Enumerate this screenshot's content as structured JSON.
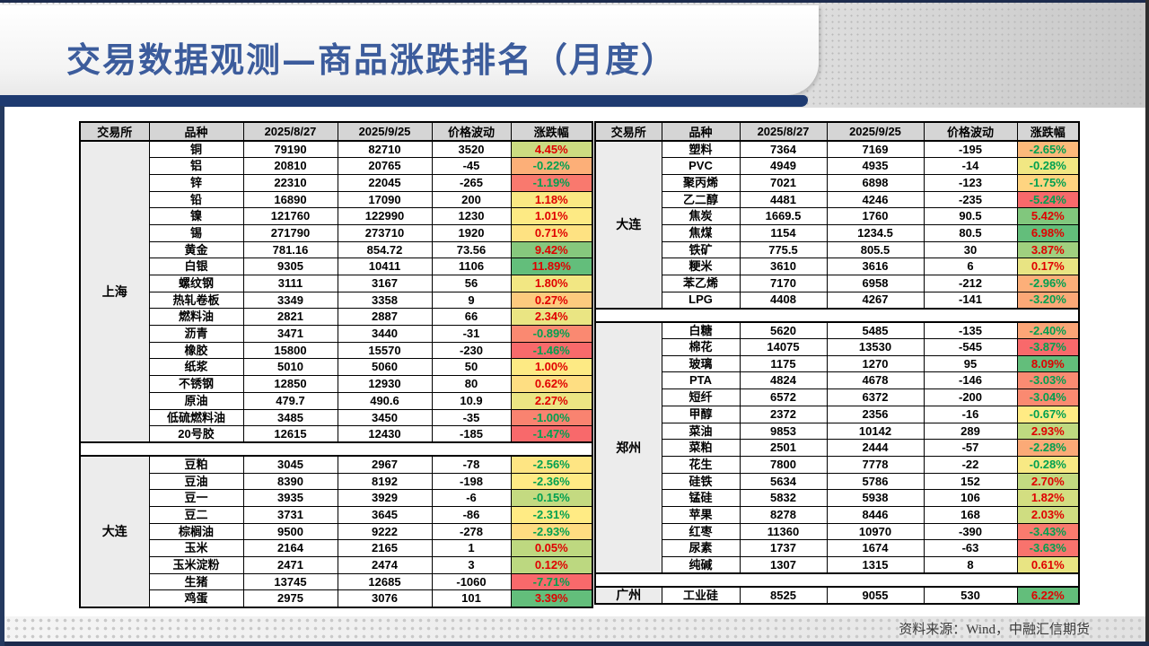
{
  "title": "交易数据观测—商品涨跌排名（月度）",
  "source_note": "资料来源：Wind，中融汇信期货",
  "colors": {
    "title_text": "#3c5c9c",
    "accent_bar": "#1e3a70",
    "up_text": "#e00000",
    "down_text": "#00a050",
    "scale_min": "#F8696B",
    "scale_mid": "#FFEB84",
    "scale_max": "#63BE7B",
    "header_fill": "#d5d5d5",
    "exchange_fill": "#ececec"
  },
  "tables": [
    {
      "id": "left",
      "headers": [
        "交易所",
        "品种",
        "2025/8/27",
        "2025/9/25",
        "价格波动",
        "涨跌幅"
      ],
      "sections": [
        {
          "exchange": "上海",
          "rows": [
            {
              "variety": "铜",
              "d1": "79190",
              "d2": "82710",
              "change": "3520",
              "pct": "4.45%",
              "dir": "up",
              "fill": "#CCDC81"
            },
            {
              "variety": "铝",
              "d1": "20810",
              "d2": "20765",
              "change": "-45",
              "pct": "-0.22%",
              "dir": "down",
              "fill": "#FCAF78"
            },
            {
              "variety": "锌",
              "d1": "22310",
              "d2": "22045",
              "change": "-265",
              "pct": "-1.19%",
              "dir": "down",
              "fill": "#F9796E"
            },
            {
              "variety": "铅",
              "d1": "16890",
              "d2": "17090",
              "change": "200",
              "pct": "1.18%",
              "dir": "up",
              "fill": "#FAE983"
            },
            {
              "variety": "镍",
              "d1": "121760",
              "d2": "122990",
              "change": "1230",
              "pct": "1.01%",
              "dir": "up",
              "fill": "#FDEA84"
            },
            {
              "variety": "锡",
              "d1": "271790",
              "d2": "273710",
              "change": "1920",
              "pct": "0.71%",
              "dir": "up",
              "fill": "#FEE282"
            },
            {
              "variety": "黄金",
              "d1": "781.16",
              "d2": "854.72",
              "change": "73.56",
              "pct": "9.42%",
              "dir": "up",
              "fill": "#86C87D"
            },
            {
              "variety": "白银",
              "d1": "9305",
              "d2": "10411",
              "change": "1106",
              "pct": "11.89%",
              "dir": "up",
              "fill": "#63BE7B"
            },
            {
              "variety": "螺纹钢",
              "d1": "3111",
              "d2": "3167",
              "change": "56",
              "pct": "1.80%",
              "dir": "up",
              "fill": "#F2E783"
            },
            {
              "variety": "热轧卷板",
              "d1": "3349",
              "d2": "3358",
              "change": "9",
              "pct": "0.27%",
              "dir": "up",
              "fill": "#FDCA7E"
            },
            {
              "variety": "燃料油",
              "d1": "2821",
              "d2": "2887",
              "change": "66",
              "pct": "2.34%",
              "dir": "up",
              "fill": "#EAE583"
            },
            {
              "variety": "沥青",
              "d1": "3471",
              "d2": "3440",
              "change": "-31",
              "pct": "-0.89%",
              "dir": "down",
              "fill": "#FA8971"
            },
            {
              "variety": "橡胶",
              "d1": "15800",
              "d2": "15570",
              "change": "-230",
              "pct": "-1.46%",
              "dir": "down",
              "fill": "#F86A6B"
            },
            {
              "variety": "纸浆",
              "d1": "5010",
              "d2": "5060",
              "change": "50",
              "pct": "1.00%",
              "dir": "up",
              "fill": "#FDEA84"
            },
            {
              "variety": "不锈钢",
              "d1": "12850",
              "d2": "12930",
              "change": "80",
              "pct": "0.62%",
              "dir": "up",
              "fill": "#FEDE82"
            },
            {
              "variety": "原油",
              "d1": "479.7",
              "d2": "490.6",
              "change": "10.9",
              "pct": "2.27%",
              "dir": "up",
              "fill": "#EBE583"
            },
            {
              "variety": "低硫燃料油",
              "d1": "3485",
              "d2": "3450",
              "change": "-35",
              "pct": "-1.00%",
              "dir": "down",
              "fill": "#F98370"
            },
            {
              "variety": "20号胶",
              "d1": "12615",
              "d2": "12430",
              "change": "-185",
              "pct": "-1.47%",
              "dir": "down",
              "fill": "#F8696B"
            }
          ]
        },
        {
          "exchange": "大连",
          "rows": [
            {
              "variety": "豆粕",
              "d1": "3045",
              "d2": "2967",
              "change": "-78",
              "pct": "-2.56%",
              "dir": "down",
              "fill": "#FEE583"
            },
            {
              "variety": "豆油",
              "d1": "8390",
              "d2": "8192",
              "change": "-198",
              "pct": "-2.36%",
              "dir": "down",
              "fill": "#FFEA84"
            },
            {
              "variety": "豆一",
              "d1": "3935",
              "d2": "3929",
              "change": "-6",
              "pct": "-0.15%",
              "dir": "down",
              "fill": "#C4DA81"
            },
            {
              "variety": "豆二",
              "d1": "3731",
              "d2": "3645",
              "change": "-86",
              "pct": "-2.31%",
              "dir": "down",
              "fill": "#FFEB84"
            },
            {
              "variety": "棕榈油",
              "d1": "9500",
              "d2": "9222",
              "change": "-278",
              "pct": "-2.93%",
              "dir": "down",
              "fill": "#FEDC81"
            },
            {
              "variety": "玉米",
              "d1": "2164",
              "d2": "2165",
              "change": "1",
              "pct": "0.05%",
              "dir": "up",
              "fill": "#BED880"
            },
            {
              "variety": "玉米淀粉",
              "d1": "2471",
              "d2": "2474",
              "change": "3",
              "pct": "0.12%",
              "dir": "up",
              "fill": "#BCD880"
            },
            {
              "variety": "生猪",
              "d1": "13745",
              "d2": "12685",
              "change": "-1060",
              "pct": "-7.71%",
              "dir": "down",
              "fill": "#F8696B"
            },
            {
              "variety": "鸡蛋",
              "d1": "2975",
              "d2": "3076",
              "change": "101",
              "pct": "3.39%",
              "dir": "up",
              "fill": "#63BE7B"
            }
          ]
        }
      ]
    },
    {
      "id": "right",
      "headers": [
        "交易所",
        "品种",
        "2025/8/27",
        "2025/9/25",
        "价格波动",
        "涨跌幅"
      ],
      "sections": [
        {
          "exchange": "大连",
          "rows": [
            {
              "variety": "塑料",
              "d1": "7364",
              "d2": "7169",
              "change": "-195",
              "pct": "-2.65%",
              "dir": "down",
              "fill": "#FCB97A"
            },
            {
              "variety": "PVC",
              "d1": "4949",
              "d2": "4935",
              "change": "-14",
              "pct": "-0.28%",
              "dir": "down",
              "fill": "#F1E783"
            },
            {
              "variety": "聚丙烯",
              "d1": "7021",
              "d2": "6898",
              "change": "-123",
              "pct": "-1.75%",
              "dir": "down",
              "fill": "#FED480"
            },
            {
              "variety": "乙二醇",
              "d1": "4481",
              "d2": "4246",
              "change": "-235",
              "pct": "-5.24%",
              "dir": "down",
              "fill": "#F8696B"
            },
            {
              "variety": "焦炭",
              "d1": "1669.5",
              "d2": "1760",
              "change": "90.5",
              "pct": "5.42%",
              "dir": "up",
              "fill": "#81C77D"
            },
            {
              "variety": "焦煤",
              "d1": "1154",
              "d2": "1234.5",
              "change": "80.5",
              "pct": "6.98%",
              "dir": "up",
              "fill": "#63BE7B"
            },
            {
              "variety": "铁矿",
              "d1": "775.5",
              "d2": "805.5",
              "change": "30",
              "pct": "3.87%",
              "dir": "up",
              "fill": "#A0D07F"
            },
            {
              "variety": "粳米",
              "d1": "3610",
              "d2": "3616",
              "change": "6",
              "pct": "0.17%",
              "dir": "up",
              "fill": "#E8E483"
            },
            {
              "variety": "苯乙烯",
              "d1": "7170",
              "d2": "6958",
              "change": "-212",
              "pct": "-2.96%",
              "dir": "down",
              "fill": "#FCAF79"
            },
            {
              "variety": "LPG",
              "d1": "4408",
              "d2": "4267",
              "change": "-141",
              "pct": "-3.20%",
              "dir": "down",
              "fill": "#FBA877"
            }
          ]
        },
        {
          "exchange": "郑州",
          "rows": [
            {
              "variety": "白糖",
              "d1": "5620",
              "d2": "5485",
              "change": "-135",
              "pct": "-2.40%",
              "dir": "down",
              "fill": "#FBA577"
            },
            {
              "variety": "棉花",
              "d1": "14075",
              "d2": "13530",
              "change": "-545",
              "pct": "-3.87%",
              "dir": "down",
              "fill": "#F8696B"
            },
            {
              "variety": "玻璃",
              "d1": "1175",
              "d2": "1270",
              "change": "95",
              "pct": "8.09%",
              "dir": "up",
              "fill": "#63BE7B"
            },
            {
              "variety": "PTA",
              "d1": "4824",
              "d2": "4678",
              "change": "-146",
              "pct": "-3.03%",
              "dir": "down",
              "fill": "#FA8B72"
            },
            {
              "variety": "短纤",
              "d1": "6572",
              "d2": "6372",
              "change": "-200",
              "pct": "-3.04%",
              "dir": "down",
              "fill": "#FA8A71"
            },
            {
              "variety": "甲醇",
              "d1": "2372",
              "d2": "2356",
              "change": "-16",
              "pct": "-0.67%",
              "dir": "down",
              "fill": "#FFEB84"
            },
            {
              "variety": "菜油",
              "d1": "9853",
              "d2": "10142",
              "change": "289",
              "pct": "2.93%",
              "dir": "up",
              "fill": "#BFD980"
            },
            {
              "variety": "菜粕",
              "d1": "2501",
              "d2": "2444",
              "change": "-57",
              "pct": "-2.28%",
              "dir": "down",
              "fill": "#FBAA77"
            },
            {
              "variety": "花生",
              "d1": "7800",
              "d2": "7778",
              "change": "-22",
              "pct": "-0.28%",
              "dir": "down",
              "fill": "#F8E984"
            },
            {
              "variety": "硅铁",
              "d1": "5634",
              "d2": "5786",
              "change": "152",
              "pct": "2.70%",
              "dir": "up",
              "fill": "#C3DA81"
            },
            {
              "variety": "锰硅",
              "d1": "5832",
              "d2": "5938",
              "change": "106",
              "pct": "1.82%",
              "dir": "up",
              "fill": "#D3DE81"
            },
            {
              "variety": "苹果",
              "d1": "8278",
              "d2": "8446",
              "change": "168",
              "pct": "2.03%",
              "dir": "up",
              "fill": "#CFDD81"
            },
            {
              "variety": "红枣",
              "d1": "11360",
              "d2": "10970",
              "change": "-390",
              "pct": "-3.43%",
              "dir": "down",
              "fill": "#F97B6E"
            },
            {
              "variety": "尿素",
              "d1": "1737",
              "d2": "1674",
              "change": "-63",
              "pct": "-3.63%",
              "dir": "down",
              "fill": "#F8736D"
            },
            {
              "variety": "纯碱",
              "d1": "1307",
              "d2": "1315",
              "change": "8",
              "pct": "0.61%",
              "dir": "up",
              "fill": "#E8E483"
            }
          ]
        },
        {
          "exchange": "广州",
          "rows": [
            {
              "variety": "工业硅",
              "d1": "8525",
              "d2": "9055",
              "change": "530",
              "pct": "6.22%",
              "dir": "up",
              "fill": "#63BE7B"
            }
          ]
        }
      ]
    }
  ]
}
